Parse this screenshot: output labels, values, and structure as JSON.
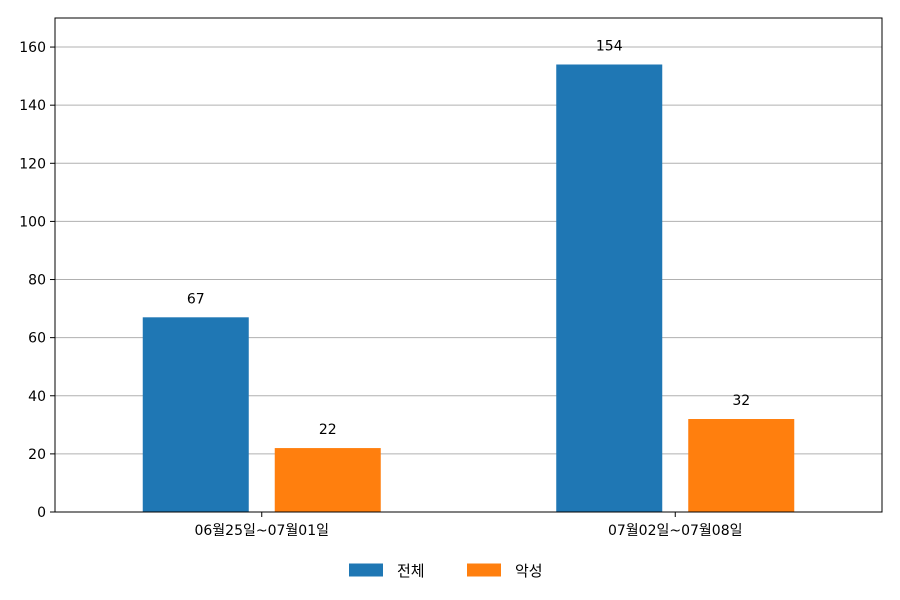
{
  "chart_data": {
    "type": "bar",
    "categories": [
      "06월25일~07월01일",
      "07월02일~07월08일"
    ],
    "series": [
      {
        "name": "전체",
        "values": [
          67,
          154
        ],
        "color": "#1f77b4"
      },
      {
        "name": "악성",
        "values": [
          22,
          32
        ],
        "color": "#ff7f0e"
      }
    ],
    "ylim": [
      0,
      170
    ],
    "yticks": [
      0,
      20,
      40,
      60,
      80,
      100,
      120,
      140,
      160
    ],
    "grid": "horizontal",
    "legend_position": "bottom-center",
    "colors": {
      "grid": "#b0b0b0",
      "axis": "#000000"
    }
  }
}
